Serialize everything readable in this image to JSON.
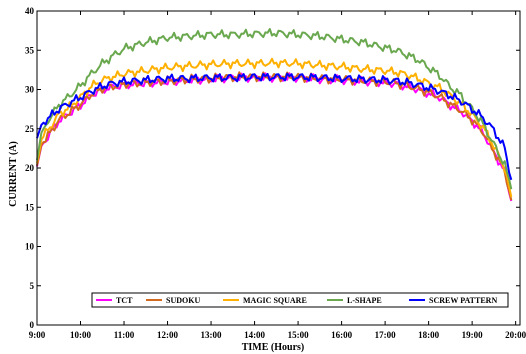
{
  "chart_data": {
    "type": "line",
    "title": "",
    "xlabel": "TIME (Hours)",
    "ylabel": "CURRENT (A)",
    "x_ticks": [
      "9:00",
      "10:00",
      "11:00",
      "12:00",
      "13:00",
      "14:00",
      "15:00",
      "16:00",
      "17:00",
      "18:00",
      "19:00",
      "20:00"
    ],
    "y_ticks": [
      "0",
      "5",
      "10",
      "15",
      "20",
      "25",
      "30",
      "35",
      "40"
    ],
    "xlim": [
      9,
      20.1
    ],
    "ylim": [
      0,
      40
    ],
    "grid": false,
    "legend_position": "bottom-inside",
    "series": [
      {
        "name": "TCT",
        "color": "#ff00ff",
        "x": [
          9.0,
          9.1,
          9.25,
          9.5,
          9.75,
          10.0,
          10.25,
          10.5,
          10.75,
          11.0,
          11.5,
          12.0,
          12.5,
          13.0,
          13.5,
          14.0,
          14.5,
          15.0,
          15.5,
          16.0,
          16.5,
          17.0,
          17.25,
          17.5,
          17.75,
          18.0,
          18.25,
          18.5,
          18.75,
          19.0,
          19.25,
          19.5,
          19.75,
          19.9
        ],
        "y": [
          20.2,
          22.8,
          24.0,
          26.0,
          27.0,
          28.0,
          29.3,
          30.0,
          30.3,
          30.6,
          30.8,
          31.0,
          31.2,
          31.3,
          31.5,
          31.5,
          31.5,
          31.5,
          31.3,
          31.2,
          31.0,
          30.9,
          30.7,
          30.4,
          30.0,
          29.5,
          29.0,
          28.0,
          27.2,
          26.0,
          24.5,
          22.0,
          19.5,
          15.8
        ]
      },
      {
        "name": "SUDOKU",
        "color": "#d2691e",
        "x": [
          9.0,
          9.1,
          9.25,
          9.5,
          9.75,
          10.0,
          10.25,
          10.5,
          10.75,
          11.0,
          11.5,
          12.0,
          12.5,
          13.0,
          13.5,
          14.0,
          14.5,
          15.0,
          15.5,
          16.0,
          16.5,
          17.0,
          17.25,
          17.5,
          17.75,
          18.0,
          18.25,
          18.5,
          18.75,
          19.0,
          19.25,
          19.5,
          19.75,
          19.9
        ],
        "y": [
          20.3,
          22.9,
          24.1,
          26.1,
          27.1,
          28.1,
          29.4,
          30.1,
          30.4,
          30.7,
          30.9,
          31.1,
          31.3,
          31.4,
          31.6,
          31.6,
          31.6,
          31.6,
          31.4,
          31.3,
          31.1,
          31.0,
          30.8,
          30.5,
          30.1,
          29.6,
          29.1,
          28.1,
          27.3,
          26.1,
          24.6,
          22.1,
          19.6,
          15.9
        ]
      },
      {
        "name": "MAGIC SQUARE",
        "color": "#ffb000",
        "x": [
          9.0,
          9.1,
          9.25,
          9.5,
          9.75,
          10.0,
          10.25,
          10.5,
          10.75,
          11.0,
          11.5,
          12.0,
          12.5,
          13.0,
          13.5,
          14.0,
          14.5,
          15.0,
          15.5,
          16.0,
          16.5,
          17.0,
          17.25,
          17.5,
          17.75,
          18.0,
          18.25,
          18.5,
          18.75,
          19.0,
          19.25,
          19.5,
          19.75,
          19.9
        ],
        "y": [
          20.6,
          23.6,
          24.8,
          26.8,
          27.8,
          29.0,
          30.4,
          31.2,
          31.6,
          32.0,
          32.4,
          32.8,
          33.0,
          33.2,
          33.3,
          33.3,
          33.4,
          33.3,
          33.1,
          32.9,
          32.6,
          32.4,
          32.2,
          31.9,
          31.4,
          30.8,
          30.2,
          29.2,
          28.2,
          26.8,
          25.2,
          22.8,
          20.0,
          16.3
        ]
      },
      {
        "name": "L-SHAPE",
        "color": "#6aa84f",
        "x": [
          9.0,
          9.1,
          9.25,
          9.5,
          9.75,
          10.0,
          10.25,
          10.5,
          10.75,
          11.0,
          11.5,
          12.0,
          12.5,
          13.0,
          13.5,
          14.0,
          14.5,
          15.0,
          15.5,
          16.0,
          16.5,
          17.0,
          17.25,
          17.5,
          17.75,
          18.0,
          18.25,
          18.5,
          18.75,
          19.0,
          19.25,
          19.5,
          19.75,
          19.9
        ],
        "y": [
          21.0,
          24.5,
          26.0,
          28.0,
          29.2,
          30.5,
          32.0,
          33.3,
          34.3,
          35.2,
          36.0,
          36.6,
          36.8,
          37.0,
          37.0,
          37.1,
          37.2,
          37.0,
          36.8,
          36.4,
          36.0,
          35.3,
          35.0,
          34.4,
          33.8,
          32.8,
          31.8,
          30.3,
          29.2,
          27.5,
          25.6,
          23.0,
          20.4,
          17.3
        ]
      },
      {
        "name": "SCREW PATTERN",
        "color": "#0000ff",
        "x": [
          9.0,
          9.1,
          9.25,
          9.5,
          9.75,
          10.0,
          10.25,
          10.5,
          10.75,
          11.0,
          11.5,
          12.0,
          12.5,
          13.0,
          13.5,
          14.0,
          14.5,
          15.0,
          15.5,
          16.0,
          16.5,
          17.0,
          17.25,
          17.5,
          17.75,
          18.0,
          18.25,
          18.5,
          18.75,
          19.0,
          19.25,
          19.5,
          19.75,
          19.9
        ],
        "y": [
          23.8,
          25.5,
          26.3,
          27.5,
          28.3,
          29.0,
          29.8,
          30.4,
          30.8,
          31.0,
          31.2,
          31.4,
          31.4,
          31.5,
          31.5,
          31.6,
          31.6,
          31.6,
          31.5,
          31.4,
          31.3,
          31.2,
          31.1,
          30.9,
          30.6,
          30.2,
          29.8,
          29.2,
          28.5,
          27.5,
          26.4,
          24.8,
          22.5,
          18.5
        ]
      }
    ]
  }
}
